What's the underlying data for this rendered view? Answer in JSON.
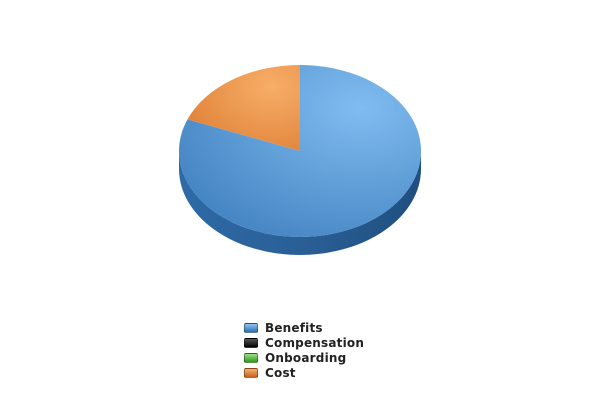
{
  "chart_data": {
    "type": "pie",
    "title": "",
    "categories": [
      "Benefits",
      "Compensation",
      "Onboarding",
      "Cost"
    ],
    "values": [
      81,
      0,
      0,
      19
    ],
    "colors": [
      "#4a8ed1",
      "#1a1a1a",
      "#4cbb3a",
      "#e8823a"
    ],
    "style": "3d",
    "legend_position": "bottom-center"
  }
}
